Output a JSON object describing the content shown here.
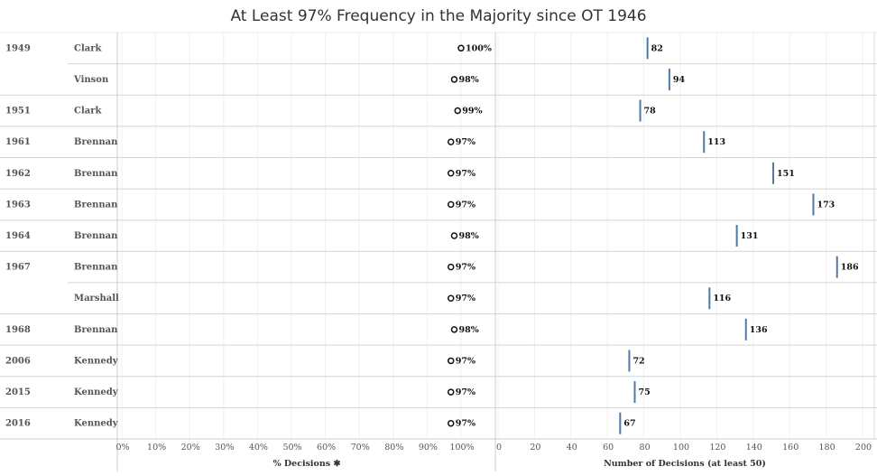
{
  "chart_data": {
    "type": "table",
    "title": "At Least 97% Frequency in the Majority since OT 1946",
    "rows": [
      {
        "year": "1949",
        "justice": "Clark",
        "pct": 100,
        "pct_label": "100%",
        "count": 82
      },
      {
        "year": "",
        "justice": "Vinson",
        "pct": 98,
        "pct_label": "98%",
        "count": 94
      },
      {
        "year": "1951",
        "justice": "Clark",
        "pct": 99,
        "pct_label": "99%",
        "count": 78
      },
      {
        "year": "1961",
        "justice": "Brennan",
        "pct": 97,
        "pct_label": "97%",
        "count": 113
      },
      {
        "year": "1962",
        "justice": "Brennan",
        "pct": 97,
        "pct_label": "97%",
        "count": 151
      },
      {
        "year": "1963",
        "justice": "Brennan",
        "pct": 97,
        "pct_label": "97%",
        "count": 173
      },
      {
        "year": "1964",
        "justice": "Brennan",
        "pct": 98,
        "pct_label": "98%",
        "count": 131
      },
      {
        "year": "1967",
        "justice": "Brennan",
        "pct": 97,
        "pct_label": "97%",
        "count": 186
      },
      {
        "year": "",
        "justice": "Marshall",
        "pct": 97,
        "pct_label": "97%",
        "count": 116
      },
      {
        "year": "1968",
        "justice": "Brennan",
        "pct": 98,
        "pct_label": "98%",
        "count": 136
      },
      {
        "year": "2006",
        "justice": "Kennedy",
        "pct": 97,
        "pct_label": "97%",
        "count": 72
      },
      {
        "year": "2015",
        "justice": "Kennedy",
        "pct": 97,
        "pct_label": "97%",
        "count": 75
      },
      {
        "year": "2016",
        "justice": "Kennedy",
        "pct": 97,
        "pct_label": "97%",
        "count": 67
      }
    ],
    "pct_axis": {
      "label": "% Decisions ✱",
      "ticks": [
        "0%",
        "10%",
        "20%",
        "30%",
        "40%",
        "50%",
        "60%",
        "70%",
        "80%",
        "90%",
        "100%"
      ],
      "range": [
        0,
        100
      ]
    },
    "count_axis": {
      "label": "Number of Decisions (at least 50)",
      "ticks": [
        "0",
        "20",
        "40",
        "60",
        "80",
        "100",
        "120",
        "140",
        "160",
        "180",
        "200"
      ],
      "range": [
        0,
        200
      ]
    },
    "bar_color": "#4e79a7"
  }
}
